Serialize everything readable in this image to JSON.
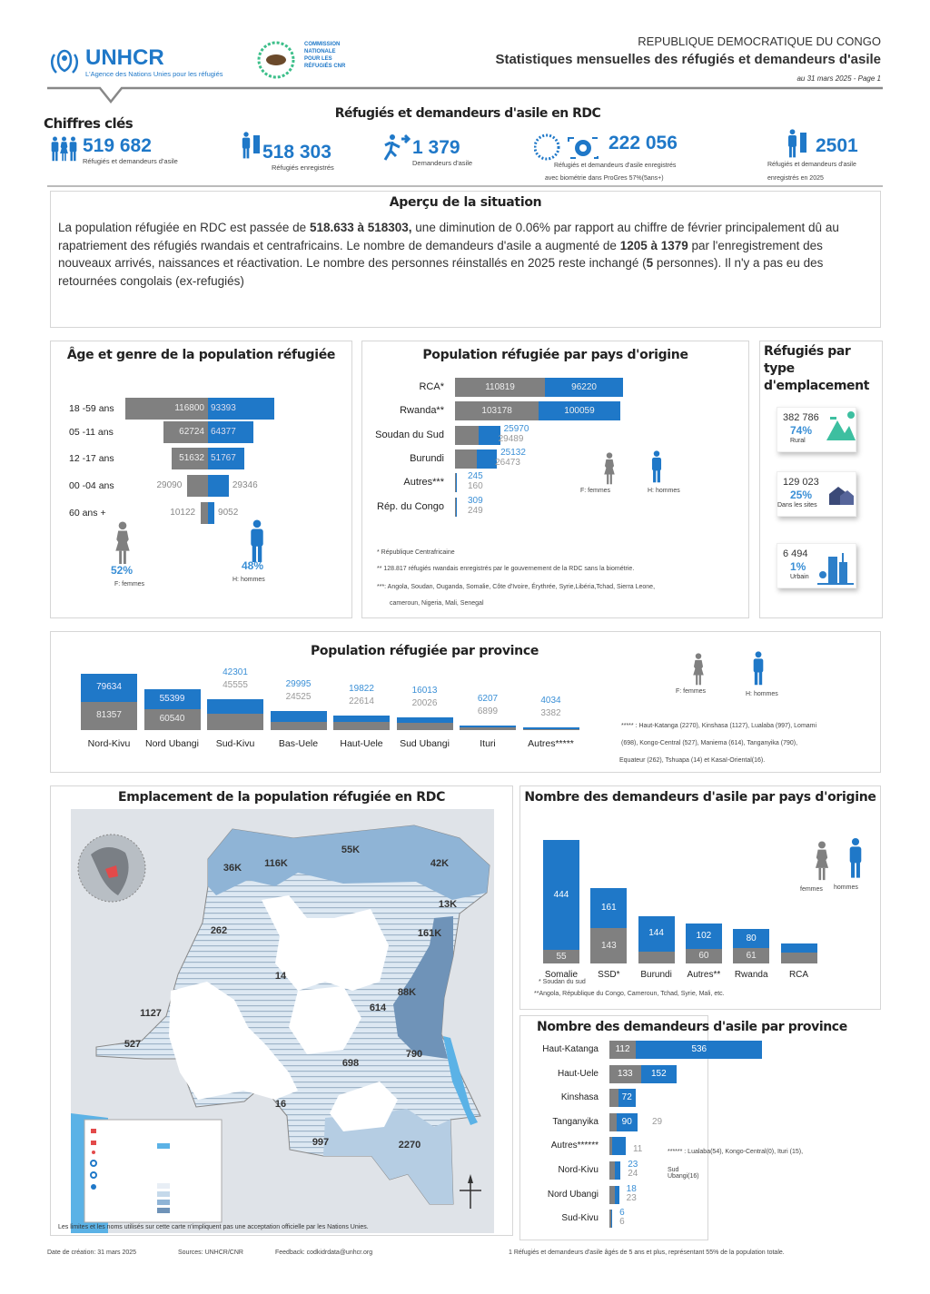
{
  "colors": {
    "female": "#808080",
    "male": "#1f78c8",
    "male_label": "#3a8fd6",
    "female_label": "#999999",
    "rural": "#3dbfa0",
    "sites": "#3b4a78",
    "urban": "#2d7fc9"
  },
  "header": {
    "unhcr_logo": "UNHCR",
    "unhcr_tagline": "L'Agence des Nations Unies pour les réfugiés",
    "cnr_logo": "COMMISSION NATIONALE POUR LES RÉFUGIÉS CNR",
    "country": "REPUBLIQUE DEMOCRATIQUE DU CONGO",
    "title": "Statistiques mensuelles des réfugiés et demandeurs d'asile",
    "date_page": "au 31 mars 2025 - Page 1"
  },
  "key_figures": {
    "section_label": "Chiffres clés",
    "title": "Réfugiés et demandeurs d'asile en RDC",
    "items": [
      {
        "value": "519 682",
        "label": "Réfugiés et demandeurs d'asile",
        "icon": "family-icon"
      },
      {
        "value": "518 303",
        "label": "Réfugiés enregistrés",
        "icon": "refugee-icon"
      },
      {
        "value": "1 379",
        "label": "Demandeurs d'asile",
        "icon": "asylum-seeker-icon"
      },
      {
        "value": "222 056",
        "label": "Réfugiés et demandeurs d'asile enregistrés",
        "label2": "avec biométrie dans ProGres 57%(5ans+)",
        "icon": "biometric-icon"
      },
      {
        "value": "2501",
        "label": "Réfugiés et demandeurs d'asile",
        "label2": "enregistrés en 2025",
        "icon": "refugee-icon"
      }
    ]
  },
  "overview": {
    "title": "Aperçu de la situation",
    "segments": [
      {
        "text": "La population réfugiée en RDC est passée de "
      },
      {
        "text": "518.633 à 518303,"
      },
      {
        "text": " une diminution de 0.06% par rapport au chiffre de février principalement dû au rapatriement des réfugiés rwandais et centrafricains. Le nombre de demandeurs d'asile a augmenté de "
      },
      {
        "text": "1205 à 1379"
      },
      {
        "text": " par l'enregistrement des nouveaux arrivés, naissances et réactivation. Le nombre des personnes réinstallés en 2025 reste inchangé ("
      },
      {
        "text": "5"
      },
      {
        "text": " personnes). Il n'y a pas eu des retournées congolais (ex-refugiés)"
      }
    ]
  },
  "chart_data": [
    {
      "id": "age",
      "type": "bar",
      "orientation": "horizontal-pyramid",
      "title": "Âge et genre de la population réfugiée",
      "categories": [
        "18 -59 ans",
        "05 -11 ans",
        "12 -17 ans",
        "00 -04 ans",
        "60 ans +"
      ],
      "series": [
        {
          "name": "F: femmes",
          "values": [
            116800,
            62724,
            51632,
            29090,
            10122
          ]
        },
        {
          "name": "H: hommes",
          "values": [
            93393,
            64377,
            51767,
            29346,
            9052
          ]
        }
      ],
      "female_share": "52%",
      "male_share": "48%",
      "female_legend": "F: femmes",
      "male_legend": "H: hommes"
    },
    {
      "id": "origin",
      "type": "bar",
      "orientation": "horizontal-stacked",
      "title": "Population réfugiée par pays d'origine",
      "categories": [
        "RCA*",
        "Rwanda**",
        "Soudan du Sud",
        "Burundi",
        "Autres***",
        "Rép. du Congo"
      ],
      "series": [
        {
          "name": "F: femmes",
          "values": [
            110819,
            103178,
            29489,
            26473,
            160,
            249
          ]
        },
        {
          "name": "H: hommes",
          "values": [
            96220,
            100059,
            25970,
            25132,
            245,
            309
          ]
        }
      ],
      "female_legend": "F: femmes",
      "male_legend": "H: hommes",
      "notes": [
        "* République Centrafricaine",
        "** 128.817   réfugiés rwandais   enregistrés par le gouvernement de la RDC sans la biométrie.",
        "***: Angola, Soudan, Ouganda, Somalie, Côte d'Ivoire, Érythrée, Syrie,Libéria,Tchad, Sierra Leone,",
        "cameroun, Nigeria, Mali, Senegal"
      ]
    },
    {
      "id": "province",
      "type": "bar",
      "orientation": "vertical-stacked",
      "title": "Population réfugiée  par province",
      "categories": [
        "Nord-Kivu",
        "Nord Ubangi",
        "Sud-Kivu",
        "Bas-Uele",
        "Haut-Uele",
        "Sud Ubangi",
        "Ituri",
        "Autres*****"
      ],
      "series": [
        {
          "name": "F: femmes",
          "values": [
            81357,
            60540,
            45555,
            24525,
            22614,
            20026,
            6899,
            3382
          ]
        },
        {
          "name": "H: hommes",
          "values": [
            79634,
            55399,
            42301,
            29995,
            19822,
            16013,
            6207,
            4034
          ]
        }
      ],
      "female_legend": "F: femmes",
      "male_legend": "H: hommes",
      "notes": [
        "***** : Haut-Katanga (2270), Kinshasa (1127), Lualaba (997), Lomami",
        "(698), Kongo-Central (527), Maniema (614), Tanganyika (790),",
        "Equateur (262), Tshuapa (14) et Kasaï-Oriental(16)."
      ]
    },
    {
      "id": "asylum_origin",
      "type": "bar",
      "orientation": "vertical-stacked",
      "title": "Nombre des demandeurs d'asile par pays d'origine",
      "categories": [
        "Somalie",
        "SSD*",
        "Burundi",
        "Autres**",
        "Rwanda",
        "RCA"
      ],
      "series": [
        {
          "name": "femmes",
          "values": [
            55,
            143,
            49,
            60,
            61,
            44
          ],
          "labels": [
            "55",
            "143",
            "",
            "60",
            "61",
            ""
          ]
        },
        {
          "name": "hommes",
          "values": [
            444,
            161,
            144,
            102,
            80,
            37
          ],
          "labels": [
            "444",
            "161",
            "144",
            "102",
            "80",
            ""
          ]
        }
      ],
      "female_legend": "femmes",
      "male_legend": "hommes",
      "notes": [
        "* Soudan du sud",
        "**Angola, République du Congo, Cameroun, Tchad, Syrie, Mali, etc."
      ]
    },
    {
      "id": "asylum_province",
      "type": "bar",
      "orientation": "horizontal-stacked",
      "title": "Nombre des demandeurs d'asile par province",
      "categories": [
        "Haut-Katanga",
        "Haut-Uele",
        "Kinshasa",
        "Tanganyika",
        "Autres******",
        "Nord-Kivu",
        "Nord Ubangi",
        "Sud-Kivu"
      ],
      "series": [
        {
          "name": "femmes",
          "values": [
            112,
            133,
            38,
            29,
            11,
            24,
            23,
            6
          ],
          "labels": [
            "112",
            "133",
            "",
            "29",
            "11",
            "24",
            "23",
            "6"
          ]
        },
        {
          "name": "hommes",
          "values": [
            536,
            152,
            72,
            90,
            58,
            23,
            18,
            6
          ],
          "labels": [
            "536",
            "152",
            "72",
            "90",
            "",
            "23",
            "18",
            "6"
          ]
        }
      ],
      "notes": [
        "****** : Lualaba(54), Kongo-Central(0), Ituri (15),",
        "Sud Ubangi(16)"
      ]
    }
  ],
  "location_types": {
    "title": "Réfugiés par type d'emplacement",
    "items": [
      {
        "value": "382 786",
        "percent": "74%",
        "label": "Rural",
        "icon": "mountain-icon"
      },
      {
        "value": "129 023",
        "percent": "25%",
        "label": "Dans les sites",
        "icon": "houses-icon"
      },
      {
        "value": "6 494",
        "percent": "1%",
        "label": "Urbain",
        "icon": "city-icon"
      }
    ]
  },
  "map": {
    "title": "Emplacement de la population réfugiée en RDC",
    "labels": [
      "36K",
      "116K",
      "55K",
      "42K",
      "13K",
      "161K",
      "88K",
      "614",
      "790",
      "698",
      "997",
      "2270",
      "16",
      "14",
      "262",
      "1127",
      "527"
    ],
    "disclaimer": "Les limites et les noms utilisés sur cette carte n'impliquent pas une acceptation officielle par les Nations Unies."
  },
  "footer": {
    "created": "Date de création: 31 mars 2025",
    "source": "Sources: UNHCR/CNR",
    "feedback": "Feedback: codkidrdata@unhcr.org",
    "note": "1 Réfugiés et demandeurs d'asile âgés de 5 ans et plus, représentant 55% de la population totale."
  }
}
